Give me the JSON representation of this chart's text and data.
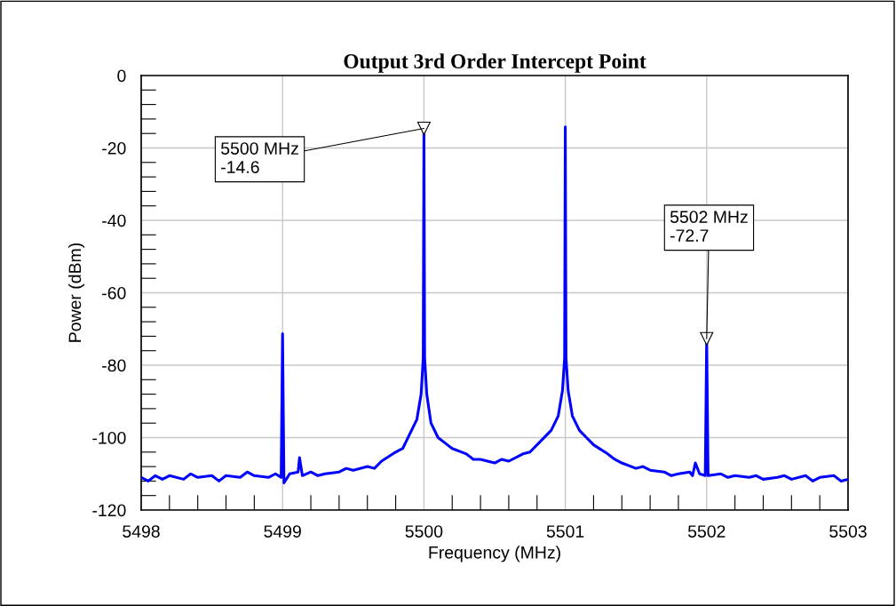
{
  "chart_data": {
    "type": "line",
    "title": "Output 3rd Order Intercept Point",
    "xlabel": "Frequency (MHz)",
    "ylabel": "Power (dBm)",
    "series": [
      {
        "color": "#0000ff",
        "x": [
          5498,
          5498.05,
          5498.1,
          5498.15,
          5498.2,
          5498.3,
          5498.35,
          5498.4,
          5498.5,
          5498.55,
          5498.6,
          5498.7,
          5498.75,
          5498.8,
          5498.9,
          5498.95,
          5498.99,
          5499,
          5499.01,
          5499.05,
          5499.11,
          5499.12,
          5499.14,
          5499.2,
          5499.25,
          5499.3,
          5499.4,
          5499.45,
          5499.5,
          5499.6,
          5499.65,
          5499.7,
          5499.8,
          5499.85,
          5499.9,
          5499.95,
          5499.98,
          5499.995,
          5500,
          5500.005,
          5500.02,
          5500.05,
          5500.1,
          5500.15,
          5500.2,
          5500.3,
          5500.35,
          5500.4,
          5500.5,
          5500.55,
          5500.6,
          5500.7,
          5500.75,
          5500.8,
          5500.9,
          5500.95,
          5500.98,
          5500.995,
          5501,
          5501.005,
          5501.02,
          5501.05,
          5501.1,
          5501.15,
          5501.2,
          5501.3,
          5501.35,
          5501.4,
          5501.5,
          5501.55,
          5501.6,
          5501.7,
          5501.75,
          5501.8,
          5501.88,
          5501.9,
          5501.92,
          5501.95,
          5501.99,
          5502,
          5502.01,
          5502.1,
          5502.15,
          5502.2,
          5502.3,
          5502.35,
          5502.4,
          5502.5,
          5502.55,
          5502.6,
          5502.7,
          5502.75,
          5502.8,
          5502.9,
          5502.95,
          5503
        ],
        "values": [
          -111,
          -112,
          -110.5,
          -111.5,
          -110.5,
          -111.5,
          -110,
          -111,
          -110.5,
          -112,
          -110.5,
          -111,
          -109.5,
          -110.5,
          -111,
          -110,
          -111,
          -71.3,
          -112.5,
          -110,
          -109.5,
          -105.5,
          -110.5,
          -109.5,
          -110.5,
          -110,
          -109.5,
          -108.5,
          -109,
          -108,
          -108.5,
          -106.5,
          -104,
          -103,
          -99,
          -95,
          -88,
          -78,
          -14.6,
          -78,
          -88,
          -96,
          -100,
          -101.5,
          -103,
          -104.5,
          -106,
          -106,
          -107,
          -106,
          -106.5,
          -104.5,
          -104,
          -102,
          -98,
          -94,
          -87,
          -78,
          -14.2,
          -78,
          -87,
          -94,
          -98,
          -100,
          -102,
          -104.5,
          -106,
          -107,
          -108.5,
          -108,
          -109,
          -109.5,
          -110.5,
          -110,
          -109.5,
          -110.5,
          -107,
          -110,
          -110.5,
          -72.7,
          -110.5,
          -110,
          -111,
          -110.5,
          -111,
          -110.5,
          -111.5,
          -111,
          -110.5,
          -111.5,
          -110.5,
          -112,
          -111,
          -110.5,
          -112,
          -111.5
        ]
      }
    ],
    "xlim": [
      5498,
      5503
    ],
    "xticks": [
      5498,
      5499,
      5500,
      5501,
      5502,
      5503
    ],
    "ylim": [
      -120,
      0
    ],
    "yticks": [
      -120,
      -100,
      -80,
      -60,
      -40,
      -20,
      0
    ],
    "grid": true,
    "annotations": [
      {
        "text": "5500 MHz\n-14.6",
        "x": 5500,
        "y": -14.6
      },
      {
        "text": "5502 MHz\n-72.7",
        "x": 5502,
        "y": -72.7
      }
    ]
  }
}
